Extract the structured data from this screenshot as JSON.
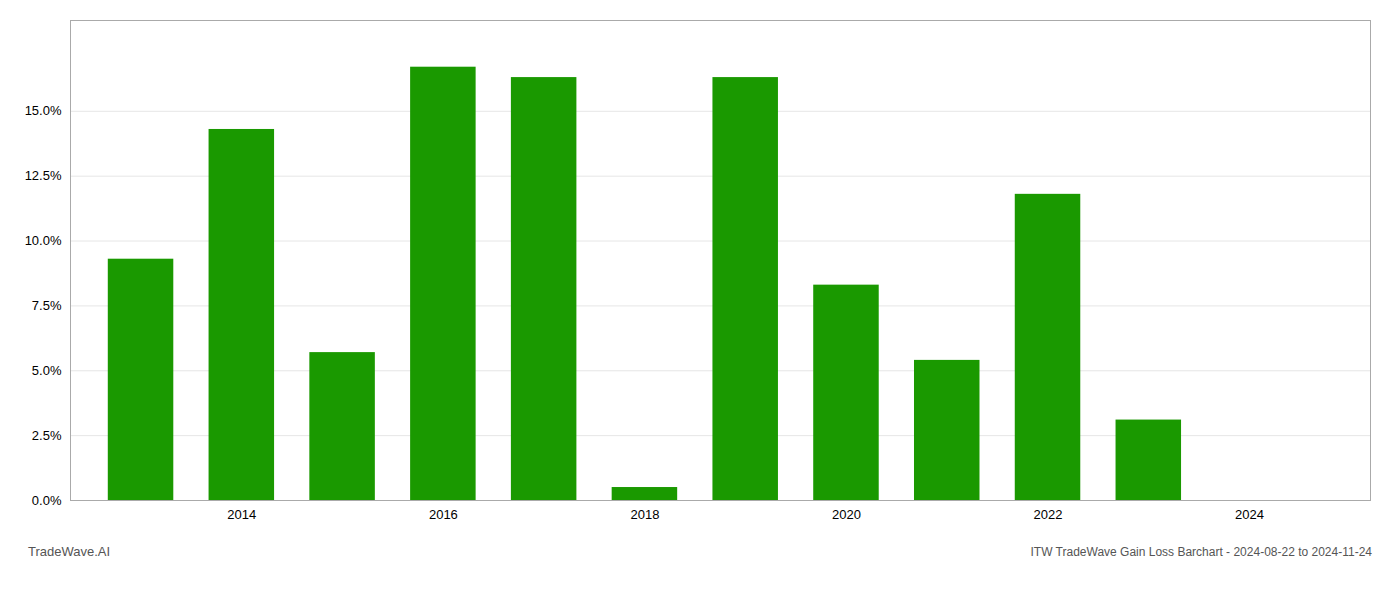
{
  "chart_data": {
    "type": "bar",
    "title": "ITW TradeWave Gain Loss Barchart - 2024-08-22 to 2024-11-24",
    "annotations": [
      "TradeWave.AI"
    ],
    "x": [
      2013,
      2014,
      2015,
      2016,
      2017,
      2018,
      2019,
      2020,
      2021,
      2022,
      2023
    ],
    "values": [
      0.093,
      0.143,
      0.057,
      0.167,
      0.163,
      0.005,
      0.163,
      0.083,
      0.054,
      0.118,
      0.031
    ],
    "color": "#1a9900",
    "xlim": [
      2012.3,
      2025.2
    ],
    "xticks": [
      2014,
      2016,
      2018,
      2020,
      2022,
      2024
    ],
    "ylim": [
      0,
      0.185
    ],
    "yticks": [
      {
        "value": 0.0,
        "label": "0.0%"
      },
      {
        "value": 0.025,
        "label": "2.5%"
      },
      {
        "value": 0.05,
        "label": "5.0%"
      },
      {
        "value": 0.075,
        "label": "7.5%"
      },
      {
        "value": 0.1,
        "label": "10.0%"
      },
      {
        "value": 0.125,
        "label": "12.5%"
      },
      {
        "value": 0.15,
        "label": "15.0%"
      }
    ],
    "grid": true
  }
}
